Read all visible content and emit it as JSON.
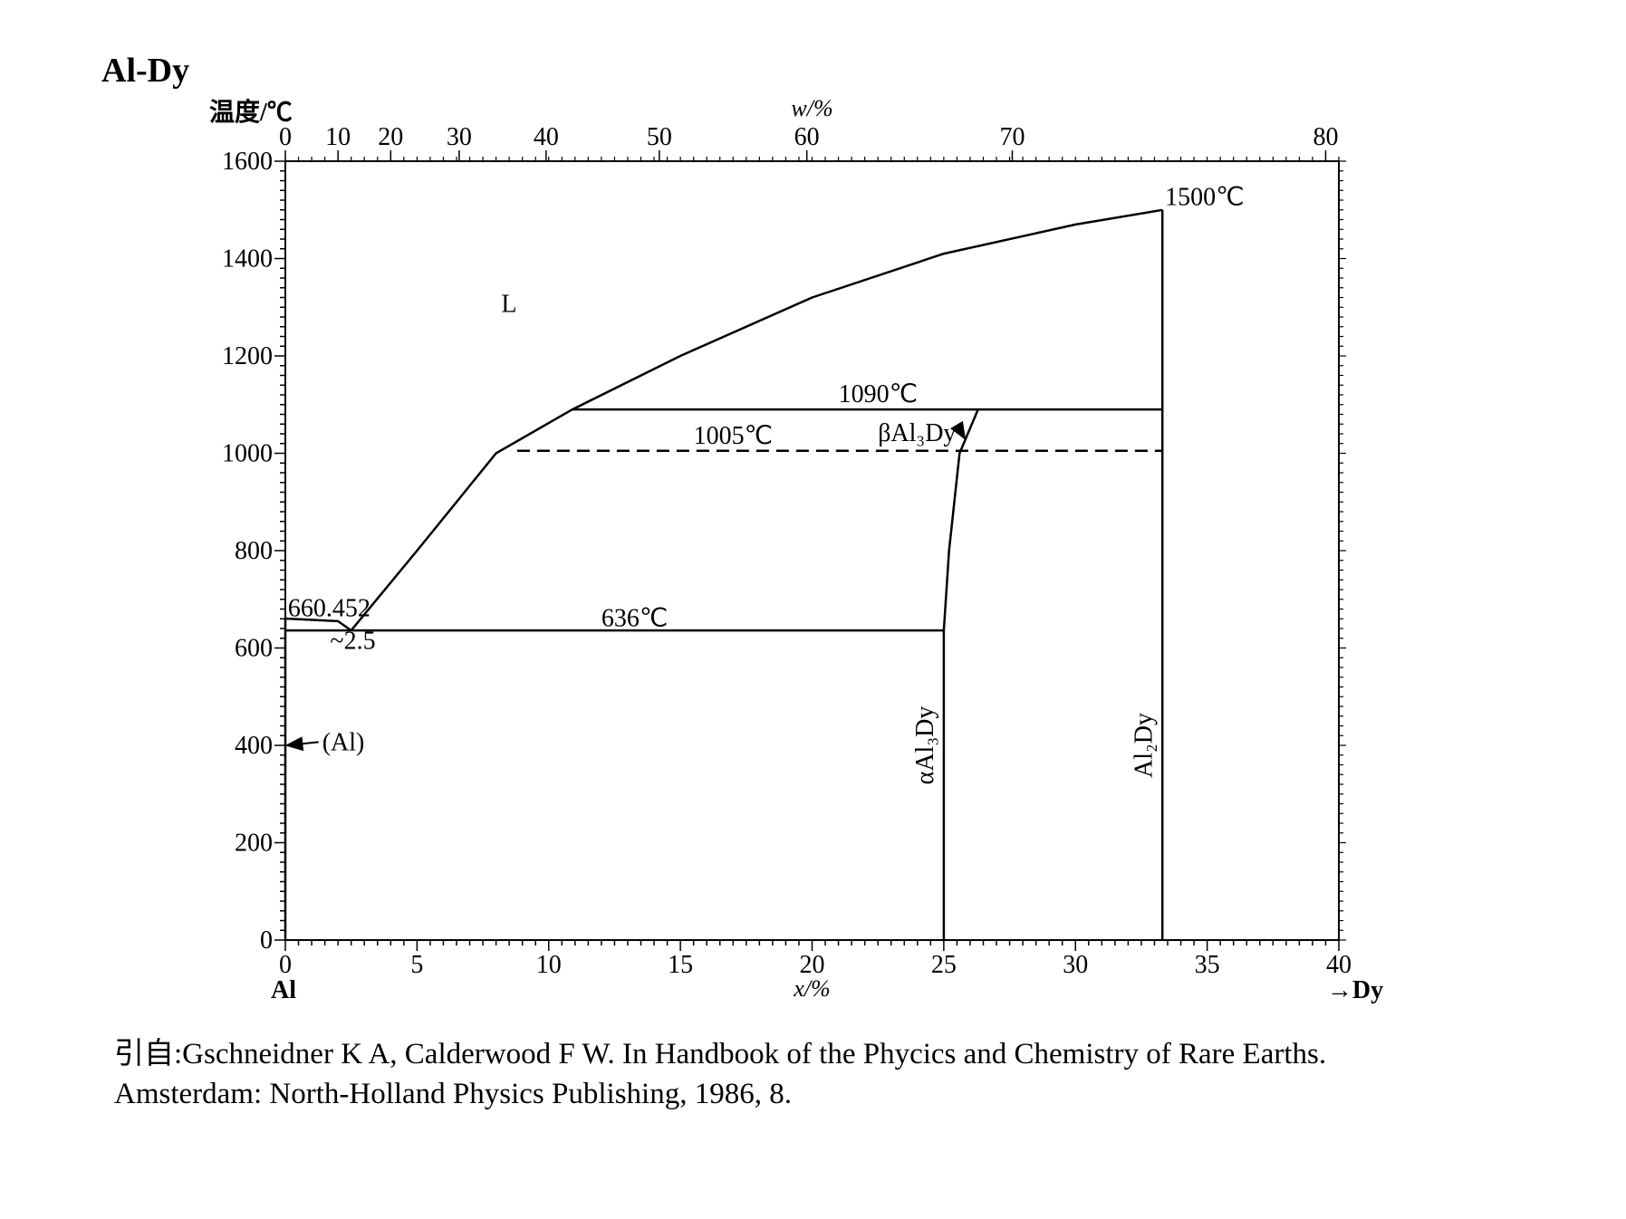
{
  "page": {
    "title": "Al-Dy"
  },
  "chart_data": {
    "type": "line",
    "title": "Al-Dy",
    "ylabel": "温度/℃",
    "xlabel_bottom": "x/%",
    "xlabel_top": "w/%",
    "x_start_label": "Al",
    "x_end_label": "→Dy",
    "xlim": [
      0,
      40
    ],
    "ylim": [
      0,
      1600
    ],
    "x_ticks": [
      0,
      5,
      10,
      15,
      20,
      25,
      30,
      35,
      40
    ],
    "y_ticks": [
      0,
      200,
      400,
      600,
      800,
      1000,
      1200,
      1400,
      1600
    ],
    "top_ticks": [
      {
        "label": "0",
        "x": 0
      },
      {
        "label": "10",
        "x": 2
      },
      {
        "label": "20",
        "x": 4
      },
      {
        "label": "30",
        "x": 6.6
      },
      {
        "label": "40",
        "x": 9.9
      },
      {
        "label": "50",
        "x": 14.2
      },
      {
        "label": "60",
        "x": 19.8
      },
      {
        "label": "70",
        "x": 27.6
      },
      {
        "label": "80",
        "x": 39.5
      }
    ],
    "series": [
      {
        "style": "solid",
        "x": [
          2.5,
          5,
          8,
          10.9,
          15,
          20,
          25,
          30,
          33.3
        ],
        "y": [
          636,
          800,
          1000,
          1090,
          1200,
          1320,
          1410,
          1470,
          1500
        ]
      },
      {
        "style": "solid",
        "x": [
          0,
          2,
          2.5
        ],
        "y": [
          660.452,
          655,
          636
        ]
      },
      {
        "style": "solid",
        "x": [
          0,
          25
        ],
        "y": [
          636,
          636
        ]
      },
      {
        "style": "solid",
        "x": [
          10.9,
          33.3
        ],
        "y": [
          1090,
          1090
        ]
      },
      {
        "style": "dashed",
        "x": [
          8.8,
          33.3
        ],
        "y": [
          1005,
          1005
        ]
      },
      {
        "style": "solid",
        "x": [
          25,
          25,
          25.2,
          25.6,
          26.3
        ],
        "y": [
          0,
          636,
          800,
          1000,
          1090
        ]
      },
      {
        "style": "solid",
        "x": [
          33.3,
          33.3
        ],
        "y": [
          0,
          1500
        ]
      },
      {
        "style": "solid",
        "x": [
          0,
          0
        ],
        "y": [
          0,
          660.452
        ]
      }
    ],
    "annotations": [
      {
        "text": "L",
        "x": 8.2,
        "y": 1290
      },
      {
        "text": "1500℃",
        "x": 33.4,
        "y": 1510
      },
      {
        "text": "1090℃",
        "x": 21,
        "y": 1105
      },
      {
        "text": "1005℃",
        "x": 15.5,
        "y": 1020
      },
      {
        "text": "βAl₃Dy",
        "x": 22.5,
        "y": 1025,
        "arrow_to": [
          25.8,
          1030
        ]
      },
      {
        "text": "660.452",
        "x": 0.1,
        "y": 665
      },
      {
        "text": "~2.5",
        "x": 1.7,
        "y": 598
      },
      {
        "text": "636℃",
        "x": 12,
        "y": 645
      },
      {
        "text": "(Al)",
        "x": 1.4,
        "y": 390,
        "arrow_to": [
          0.05,
          400
        ]
      },
      {
        "text": "αAl₃Dy",
        "x": 24.6,
        "y": 400,
        "rotate": true
      },
      {
        "text": "Al₂Dy",
        "x": 32.9,
        "y": 400,
        "rotate": true
      }
    ]
  },
  "citation": {
    "line1": "引自:Gschneidner K A, Calderwood F W. In Handbook of the Phycics and Chemistry of Rare Earths.",
    "line2": "Amsterdam: North-Holland Physics Publishing, 1986, 8."
  }
}
